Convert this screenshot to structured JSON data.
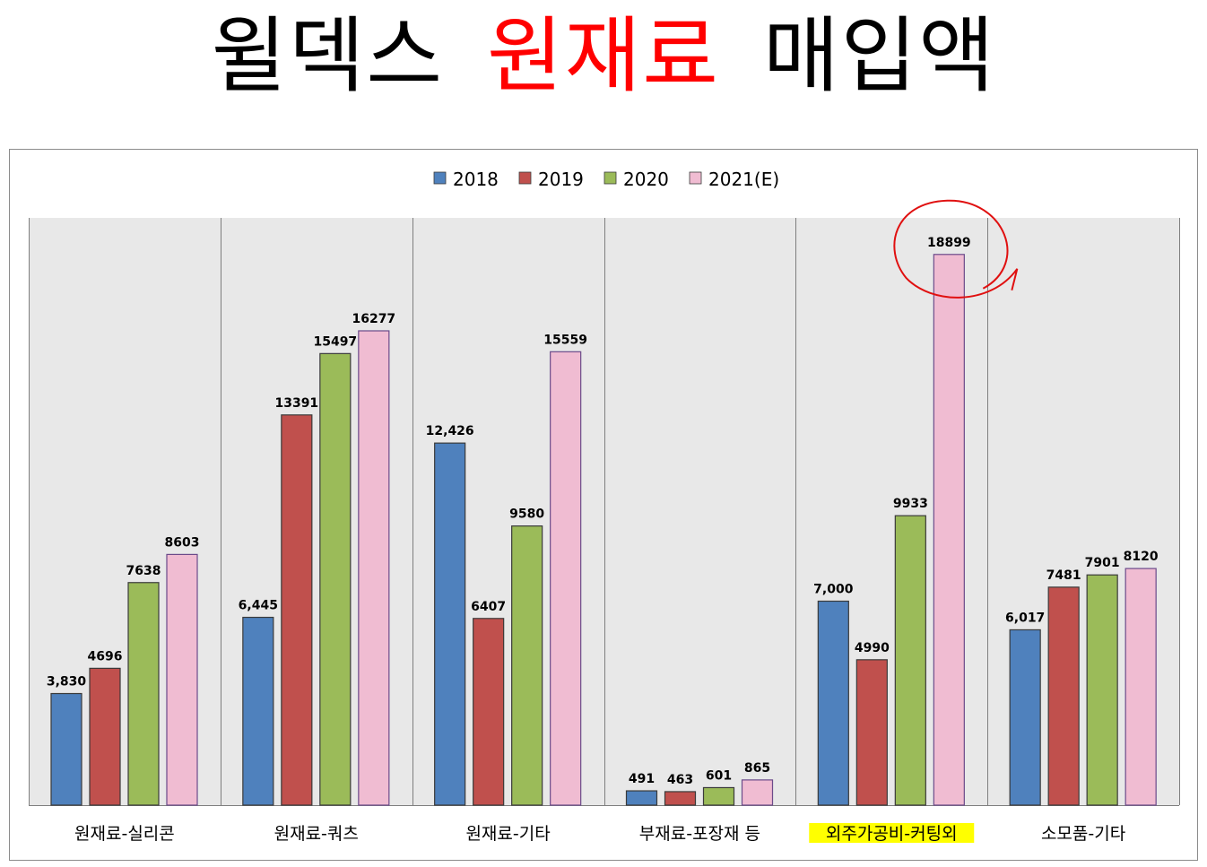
{
  "title": {
    "part1": "윌덱스",
    "part2": "원재료",
    "part3": "매입액"
  },
  "colors": {
    "title_accent": "#ff0000",
    "plot_bg": "#e8e8e8",
    "highlight": "#ffff00",
    "annotation": "#e01010"
  },
  "chart_data": {
    "type": "bar",
    "categories": [
      "원재료-실리콘",
      "원재료-쿼츠",
      "원재료-기타",
      "부재료-포장재 등",
      "외주가공비-커팅외",
      "소모품-기타"
    ],
    "series": [
      {
        "name": "2018",
        "color": "#4f81bd",
        "values": [
          3830,
          6445,
          12426,
          491,
          7000,
          6017
        ],
        "labels": [
          "3,830",
          "6,445",
          "12,426",
          "491",
          "7,000",
          "6,017"
        ]
      },
      {
        "name": "2019",
        "color": "#c0504d",
        "values": [
          4696,
          13391,
          6407,
          463,
          4990,
          7481
        ],
        "labels": [
          "4696",
          "13391",
          "6407",
          "463",
          "4990",
          "7481"
        ]
      },
      {
        "name": "2020",
        "color": "#9bbb59",
        "values": [
          7638,
          15497,
          9580,
          601,
          9933,
          7901
        ],
        "labels": [
          "7638",
          "15497",
          "9580",
          "601",
          "9933",
          "7901"
        ]
      },
      {
        "name": "2021(E)",
        "color": "#f0bcd2",
        "values": [
          8603,
          16277,
          15559,
          865,
          18899,
          8120
        ],
        "labels": [
          "8603",
          "16277",
          "15559",
          "865",
          "18899",
          "8120"
        ]
      }
    ],
    "ylim": [
      0,
      20000
    ],
    "legend_position": "top-center",
    "highlighted_category": "외주가공비-커팅외",
    "circled_value": 18899
  }
}
